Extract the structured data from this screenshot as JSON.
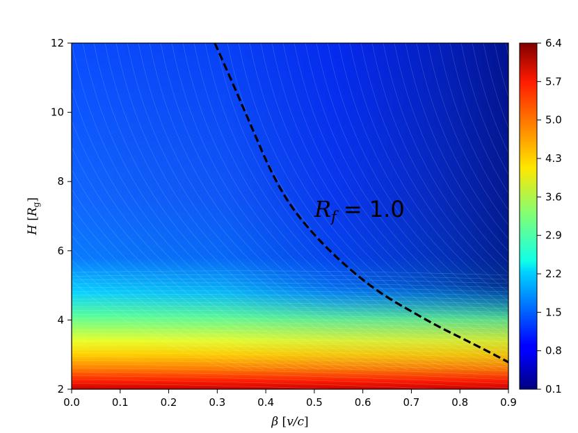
{
  "chart_data": {
    "type": "heatmap",
    "title": "",
    "xlabel": {
      "symbol": "β",
      "unit": "v/c"
    },
    "ylabel": {
      "symbol": "H",
      "unit": "R",
      "unit_sub": "g"
    },
    "xlim": [
      0.0,
      0.9
    ],
    "ylim": [
      2,
      12
    ],
    "x_ticks": [
      "0.0",
      "0.1",
      "0.2",
      "0.3",
      "0.4",
      "0.5",
      "0.6",
      "0.7",
      "0.8",
      "0.9"
    ],
    "y_ticks": [
      "2",
      "4",
      "6",
      "8",
      "10",
      "12"
    ],
    "colormap": "jet",
    "colorbar": {
      "min": 0.1,
      "max": 6.4,
      "ticks": [
        "0.1",
        "0.8",
        "1.5",
        "2.2",
        "2.9",
        "3.6",
        "4.3",
        "5.0",
        "5.7",
        "6.4"
      ]
    },
    "contour": {
      "style": "dashed",
      "color": "#000000",
      "label": {
        "symbol": "R",
        "sub": "f",
        "text": "= 1.0"
      },
      "points": [
        {
          "x": 0.295,
          "y": 12.0
        },
        {
          "x": 0.33,
          "y": 10.9
        },
        {
          "x": 0.37,
          "y": 9.6
        },
        {
          "x": 0.41,
          "y": 8.3
        },
        {
          "x": 0.45,
          "y": 7.3
        },
        {
          "x": 0.5,
          "y": 6.45
        },
        {
          "x": 0.55,
          "y": 5.75
        },
        {
          "x": 0.6,
          "y": 5.15
        },
        {
          "x": 0.65,
          "y": 4.65
        },
        {
          "x": 0.7,
          "y": 4.25
        },
        {
          "x": 0.75,
          "y": 3.85
        },
        {
          "x": 0.8,
          "y": 3.5
        },
        {
          "x": 0.85,
          "y": 3.15
        },
        {
          "x": 0.9,
          "y": 2.78
        }
      ]
    }
  }
}
